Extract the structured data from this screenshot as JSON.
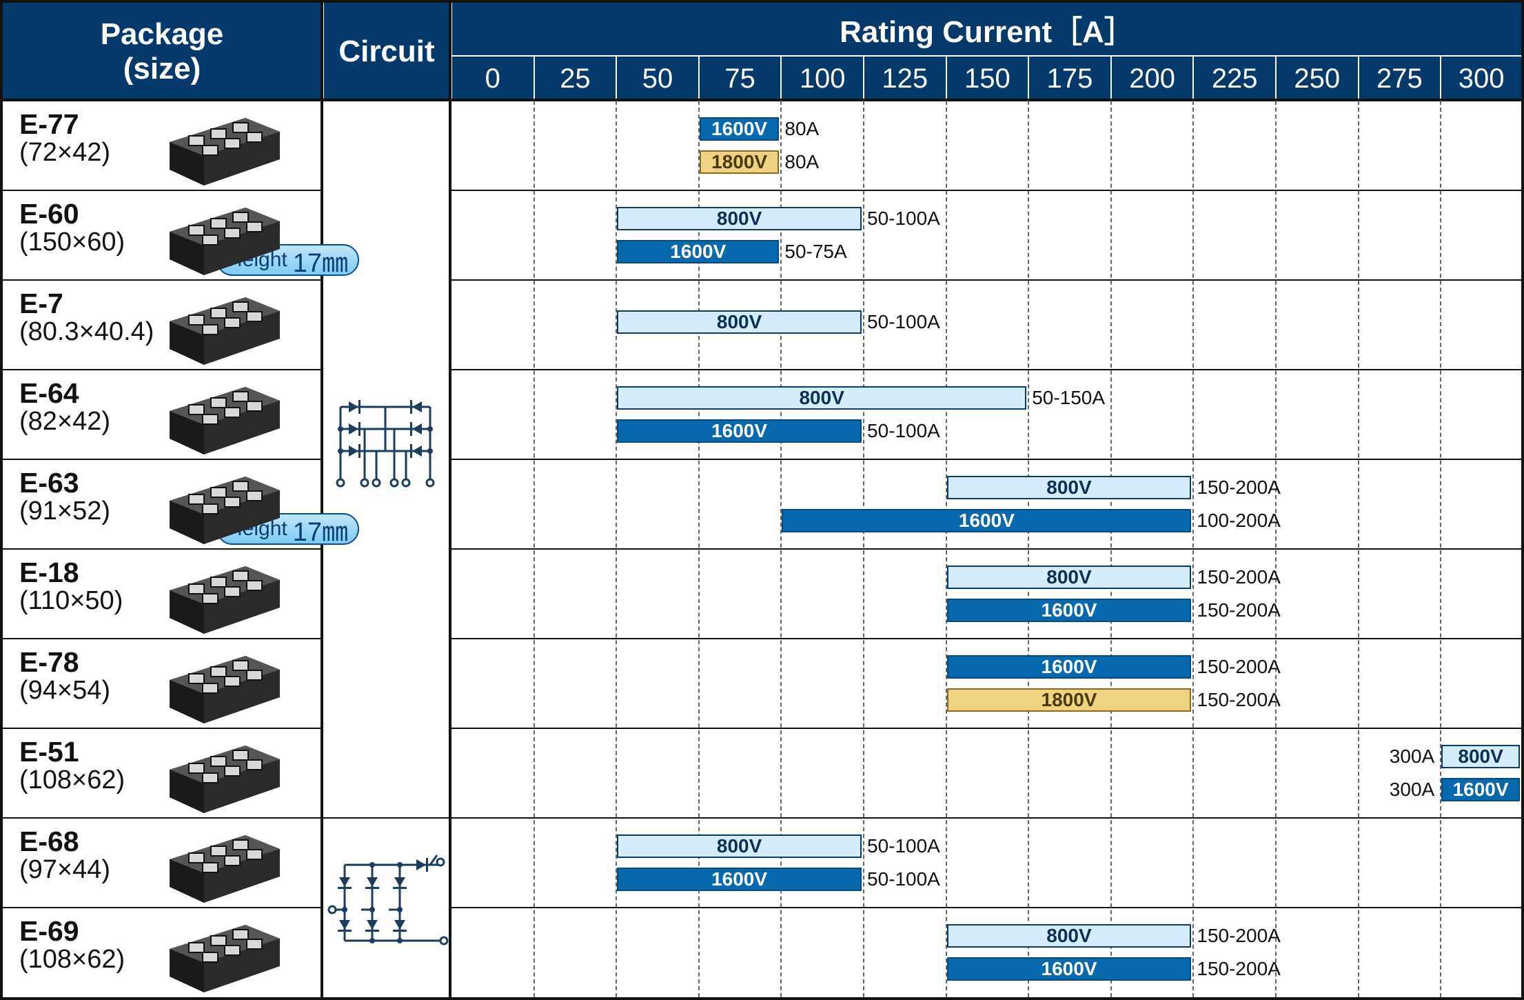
{
  "header": {
    "package_line1": "Package",
    "package_line2": "(size)",
    "circuit": "Circuit",
    "rating": "Rating Current［A］"
  },
  "chart_data": {
    "type": "bar",
    "title": "Rating Current［A］",
    "ticks": [
      "0",
      "25",
      "50",
      "75",
      "100",
      "125",
      "150",
      "175",
      "200",
      "225",
      "250",
      "275",
      "300"
    ],
    "xlim": [
      0,
      300
    ],
    "height_label": "Height",
    "height_value": "17㎜",
    "rows": [
      {
        "name": "E-77",
        "size": "(72×42)",
        "badge": false,
        "circuit": "bridge",
        "bars": [
          {
            "voltage": "1600V",
            "kind": "v1600",
            "from": 75,
            "to": 100,
            "label": "80A"
          },
          {
            "voltage": "1800V",
            "kind": "v1800",
            "from": 75,
            "to": 100,
            "label": "80A"
          }
        ]
      },
      {
        "name": "E-60",
        "size": "(150×60)",
        "badge": true,
        "circuit": "bridge",
        "bars": [
          {
            "voltage": "800V",
            "kind": "v800",
            "from": 50,
            "to": 125,
            "label": "50-100A"
          },
          {
            "voltage": "1600V",
            "kind": "v1600",
            "from": 50,
            "to": 100,
            "label": "50-75A"
          }
        ]
      },
      {
        "name": "E-7",
        "size": "(80.3×40.4)",
        "badge": false,
        "circuit": "bridge",
        "bars": [
          {
            "voltage": "800V",
            "kind": "v800",
            "from": 50,
            "to": 125,
            "label": "50-100A"
          }
        ]
      },
      {
        "name": "E-64",
        "size": "(82×42)",
        "badge": false,
        "circuit": "bridge",
        "bars": [
          {
            "voltage": "800V",
            "kind": "v800",
            "from": 50,
            "to": 175,
            "label": "50-150A"
          },
          {
            "voltage": "1600V",
            "kind": "v1600",
            "from": 50,
            "to": 125,
            "label": "50-100A"
          }
        ]
      },
      {
        "name": "E-63",
        "size": "(91×52)",
        "badge": true,
        "circuit": "bridge",
        "bars": [
          {
            "voltage": "800V",
            "kind": "v800",
            "from": 150,
            "to": 225,
            "label": "150-200A"
          },
          {
            "voltage": "1600V",
            "kind": "v1600",
            "from": 100,
            "to": 225,
            "label": "100-200A"
          }
        ]
      },
      {
        "name": "E-18",
        "size": "(110×50)",
        "badge": false,
        "circuit": "bridge",
        "bars": [
          {
            "voltage": "800V",
            "kind": "v800",
            "from": 150,
            "to": 225,
            "label": "150-200A"
          },
          {
            "voltage": "1600V",
            "kind": "v1600",
            "from": 150,
            "to": 225,
            "label": "150-200A"
          }
        ]
      },
      {
        "name": "E-78",
        "size": "(94×54)",
        "badge": false,
        "circuit": "bridge",
        "bars": [
          {
            "voltage": "1600V",
            "kind": "v1600",
            "from": 150,
            "to": 225,
            "label": "150-200A"
          },
          {
            "voltage": "1800V",
            "kind": "v1800",
            "from": 150,
            "to": 225,
            "label": "150-200A"
          }
        ]
      },
      {
        "name": "E-51",
        "size": "(108×62)",
        "badge": false,
        "circuit": "bridge",
        "bars": [
          {
            "voltage": "800V",
            "kind": "v800",
            "from": 300,
            "to": 325,
            "label": "300A",
            "label_left": true
          },
          {
            "voltage": "1600V",
            "kind": "v1600",
            "from": 300,
            "to": 325,
            "label": "300A",
            "label_left": true
          }
        ]
      },
      {
        "name": "E-68",
        "size": "(97×44)",
        "badge": false,
        "circuit": "thyristor",
        "bars": [
          {
            "voltage": "800V",
            "kind": "v800",
            "from": 50,
            "to": 125,
            "label": "50-100A"
          },
          {
            "voltage": "1600V",
            "kind": "v1600",
            "from": 50,
            "to": 125,
            "label": "50-100A"
          }
        ]
      },
      {
        "name": "E-69",
        "size": "(108×62)",
        "badge": false,
        "circuit": "thyristor",
        "bars": [
          {
            "voltage": "800V",
            "kind": "v800",
            "from": 150,
            "to": 225,
            "label": "150-200A"
          },
          {
            "voltage": "1600V",
            "kind": "v1600",
            "from": 150,
            "to": 225,
            "label": "150-200A"
          }
        ]
      }
    ]
  }
}
